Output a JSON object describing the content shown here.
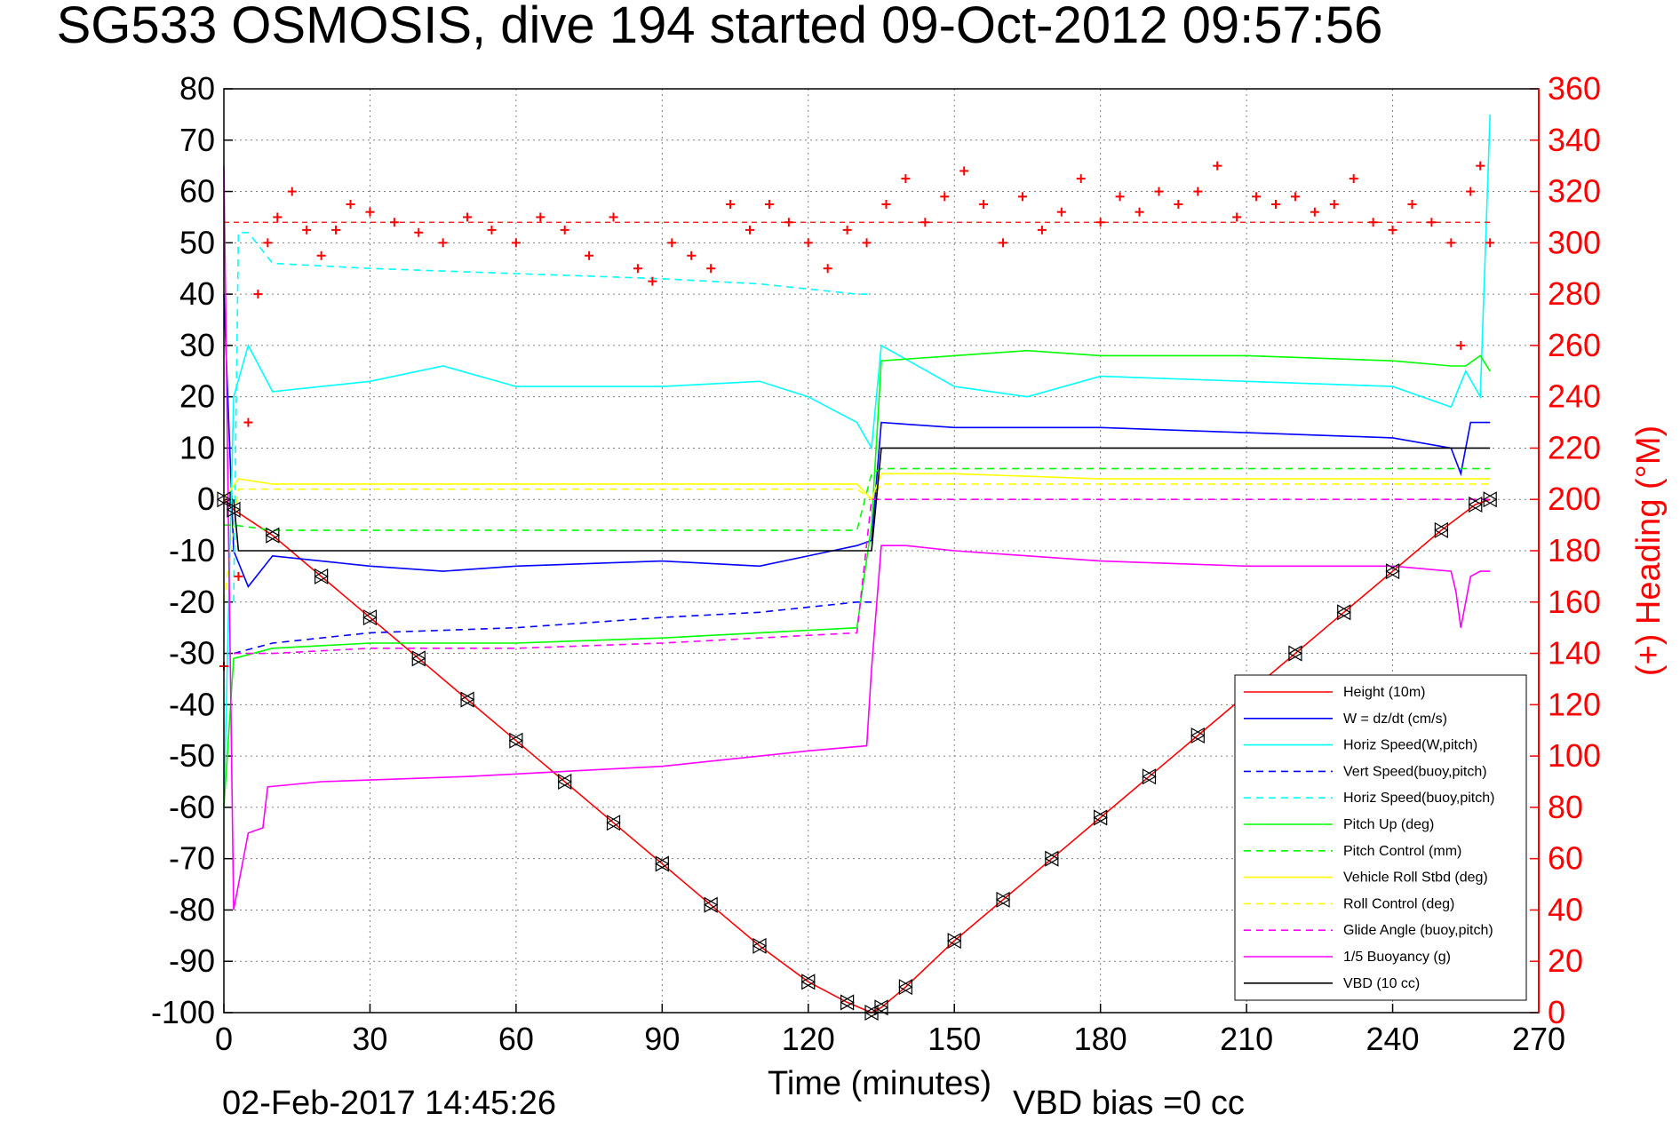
{
  "chart_data": {
    "type": "line",
    "title": "SG533 OSMOSIS, dive 194 started 09-Oct-2012 09:57:56",
    "xlabel": "Time (minutes)",
    "ylabel_right": "(+) Heading (°M)",
    "footer_date": "02-Feb-2017 14:45:26",
    "footer_vbd": "VBD bias =0 cc",
    "xlim": [
      0,
      270
    ],
    "ylim_left": [
      -100,
      80
    ],
    "ylim_right": [
      0,
      360
    ],
    "x_ticks": [
      "0",
      "30",
      "60",
      "90",
      "120",
      "150",
      "180",
      "210",
      "240",
      "270"
    ],
    "y_left_ticks": [
      "80",
      "70",
      "60",
      "50",
      "40",
      "30",
      "20",
      "10",
      "0",
      "-10",
      "-20",
      "-30",
      "-40",
      "-50",
      "-60",
      "-70",
      "-80",
      "-90",
      "-100"
    ],
    "y_right_ticks": [
      "360",
      "340",
      "320",
      "300",
      "280",
      "260",
      "240",
      "220",
      "200",
      "180",
      "160",
      "140",
      "120",
      "100",
      "80",
      "60",
      "40",
      "20",
      "0"
    ],
    "grid": true,
    "legend_position": "lower-right",
    "series": [
      {
        "name": "Height (10m)",
        "color": "#ff0000",
        "style": "solid",
        "x": [
          0,
          2,
          10,
          20,
          30,
          40,
          50,
          60,
          70,
          80,
          90,
          100,
          110,
          120,
          128,
          133,
          135,
          140,
          150,
          160,
          170,
          180,
          190,
          200,
          210,
          220,
          230,
          240,
          250,
          257,
          260
        ],
        "y": [
          0,
          -2,
          -7,
          -15,
          -23,
          -31,
          -39,
          -47,
          -55,
          -63,
          -71,
          -79,
          -87,
          -94,
          -98,
          -100,
          -99,
          -95,
          -86,
          -78,
          -70,
          -62,
          -54,
          -46,
          -38,
          -30,
          -22,
          -14,
          -6,
          -1,
          0
        ]
      },
      {
        "name": "W = dz/dt (cm/s)",
        "color": "#0000ff",
        "style": "solid",
        "x": [
          0,
          2,
          5,
          10,
          20,
          30,
          45,
          60,
          90,
          110,
          125,
          130,
          133,
          135,
          150,
          180,
          210,
          240,
          252,
          254,
          256,
          260
        ],
        "y": [
          40,
          -10,
          -17,
          -11,
          -12,
          -13,
          -14,
          -13,
          -12,
          -13,
          -10,
          -9,
          -8,
          15,
          14,
          14,
          13,
          12,
          10,
          5,
          15,
          15
        ]
      },
      {
        "name": "Horiz Speed(W,pitch)",
        "color": "#00ffff",
        "style": "solid",
        "x": [
          0,
          2,
          5,
          10,
          20,
          30,
          45,
          60,
          90,
          110,
          120,
          130,
          133,
          135,
          150,
          165,
          180,
          210,
          240,
          252,
          255,
          258,
          260
        ],
        "y": [
          -60,
          20,
          30,
          21,
          22,
          23,
          26,
          22,
          22,
          23,
          20,
          15,
          10,
          30,
          22,
          20,
          24,
          23,
          22,
          18,
          25,
          20,
          75
        ]
      },
      {
        "name": "Vert Speed(buoy,pitch)",
        "color": "#0000ff",
        "style": "dashed",
        "x": [
          2,
          10,
          30,
          60,
          90,
          110,
          130,
          133
        ],
        "y": [
          -30,
          -28,
          -26,
          -25,
          -23,
          -22,
          -20,
          -20
        ]
      },
      {
        "name": "Horiz Speed(buoy,pitch)",
        "color": "#00ffff",
        "style": "dashed",
        "x": [
          2,
          3,
          5,
          10,
          30,
          60,
          90,
          110,
          130,
          133
        ],
        "y": [
          -20,
          52,
          52,
          46,
          45,
          44,
          43,
          42,
          40,
          40
        ]
      },
      {
        "name": "Pitch Up (deg)",
        "color": "#00ff00",
        "style": "solid",
        "x": [
          0,
          2,
          10,
          30,
          60,
          90,
          110,
          130,
          133,
          135,
          150,
          165,
          180,
          210,
          240,
          252,
          255,
          258,
          260
        ],
        "y": [
          -60,
          -31,
          -29,
          -28,
          -28,
          -27,
          -26,
          -25,
          -5,
          27,
          28,
          29,
          28,
          28,
          27,
          26,
          26,
          28,
          25
        ]
      },
      {
        "name": "Pitch Control (mm)",
        "color": "#00ff00",
        "style": "dashed",
        "x": [
          0,
          2,
          10,
          130,
          133,
          135,
          260
        ],
        "y": [
          -5,
          -5,
          -6,
          -6,
          5,
          6,
          6
        ]
      },
      {
        "name": "Vehicle Roll Stbd (deg)",
        "color": "#ffff00",
        "style": "solid",
        "x": [
          0,
          3,
          10,
          30,
          60,
          90,
          110,
          130,
          133,
          135,
          150,
          180,
          210,
          240,
          260
        ],
        "y": [
          0,
          4,
          3,
          3,
          3,
          3,
          3,
          3,
          0,
          5,
          5,
          4,
          4,
          4,
          4
        ]
      },
      {
        "name": "Roll Control (deg)",
        "color": "#ffff00",
        "style": "dashed",
        "x": [
          0,
          3,
          10,
          60,
          110,
          130,
          133,
          135,
          180,
          260
        ],
        "y": [
          -20,
          2,
          2,
          2,
          2,
          2,
          0,
          3,
          3,
          3
        ]
      },
      {
        "name": "Glide Angle (buoy,pitch)",
        "color": "#ff00ff",
        "style": "dashed",
        "x": [
          2,
          10,
          30,
          60,
          90,
          110,
          130,
          133,
          135,
          260
        ],
        "y": [
          -30,
          -30,
          -29,
          -29,
          -28,
          -27,
          -26,
          0,
          0,
          0
        ]
      },
      {
        "name": "1/5 Buoyancy (g)",
        "color": "#ff00ff",
        "style": "solid",
        "x": [
          0,
          1,
          2,
          5,
          8,
          9,
          20,
          50,
          90,
          120,
          132,
          133,
          135,
          140,
          150,
          180,
          210,
          240,
          252,
          253,
          254,
          256,
          258,
          260
        ],
        "y": [
          65,
          -10,
          -80,
          -65,
          -64,
          -56,
          -55,
          -54,
          -52,
          -49,
          -48,
          -33,
          -9,
          -9,
          -10,
          -12,
          -13,
          -13,
          -14,
          -18,
          -25,
          -15,
          -14,
          -14
        ]
      },
      {
        "name": "VBD (10 cc)",
        "color": "#000000",
        "style": "solid",
        "x": [
          2,
          3,
          133,
          135,
          260
        ],
        "y": [
          0,
          -10,
          -10,
          10,
          10
        ]
      }
    ],
    "heading_series": {
      "name": "(+) Heading",
      "color": "#ff0000",
      "mean_heading": 308,
      "x": [
        0,
        3,
        5,
        7,
        9,
        11,
        14,
        17,
        20,
        23,
        26,
        30,
        35,
        40,
        45,
        50,
        55,
        60,
        65,
        70,
        75,
        80,
        85,
        88,
        92,
        96,
        100,
        104,
        108,
        112,
        116,
        120,
        124,
        128,
        132,
        136,
        140,
        144,
        148,
        152,
        156,
        160,
        164,
        168,
        172,
        176,
        180,
        184,
        188,
        192,
        196,
        200,
        204,
        208,
        212,
        216,
        220,
        224,
        228,
        232,
        236,
        240,
        244,
        248,
        252,
        254,
        256,
        258,
        260
      ],
      "y": [
        135,
        170,
        230,
        280,
        300,
        310,
        320,
        305,
        295,
        305,
        315,
        312,
        308,
        304,
        300,
        310,
        305,
        300,
        310,
        305,
        295,
        310,
        290,
        285,
        300,
        295,
        290,
        315,
        305,
        315,
        308,
        300,
        290,
        305,
        300,
        315,
        325,
        308,
        318,
        328,
        315,
        300,
        318,
        305,
        312,
        325,
        308,
        318,
        312,
        320,
        315,
        320,
        330,
        310,
        318,
        315,
        318,
        312,
        315,
        325,
        308,
        305,
        315,
        308,
        300,
        260,
        320,
        330,
        300
      ]
    },
    "legend": [
      "Height (10m)",
      "W = dz/dt (cm/s)",
      "Horiz Speed(W,pitch)",
      "Vert Speed(buoy,pitch)",
      "Horiz Speed(buoy,pitch)",
      "Pitch Up (deg)",
      "Pitch Control (mm)",
      "Vehicle Roll Stbd (deg)",
      "Roll Control (deg)",
      "Glide Angle (buoy,pitch)",
      "1/5 Buoyancy (g)",
      "VBD (10 cc)"
    ]
  },
  "colors": {
    "heading_axis": "#ff0000",
    "grid": "#808080"
  }
}
